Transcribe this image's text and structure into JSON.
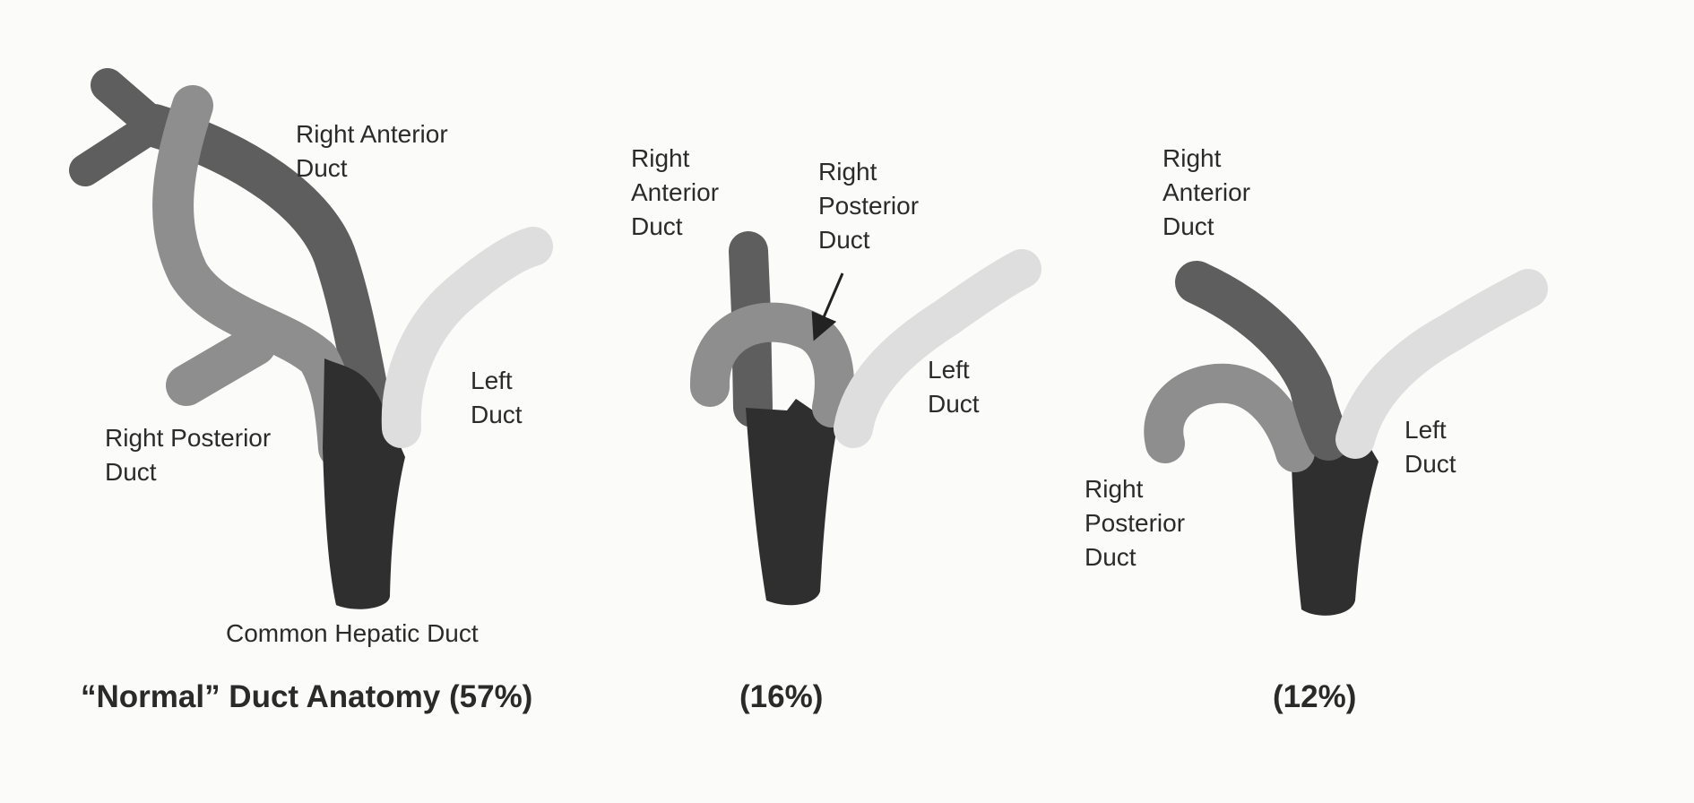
{
  "colors": {
    "background": "#fbfbf9",
    "common_hepatic_duct": "#2f2f2f",
    "right_anterior_duct": "#5e5e5e",
    "right_posterior_duct": "#8e8e8e",
    "left_duct": "#dedede"
  },
  "panels": [
    {
      "caption": "“Normal” Duct Anatomy (57%)",
      "labels": {
        "right_anterior": [
          "Right Anterior",
          "Duct"
        ],
        "right_posterior": [
          "Right Posterior",
          "Duct"
        ],
        "left": [
          "Left",
          "Duct"
        ],
        "common_hepatic": "Common Hepatic Duct"
      }
    },
    {
      "caption": "(16%)",
      "labels": {
        "right_anterior": [
          "Right",
          "Anterior",
          "Duct"
        ],
        "right_posterior": [
          "Right",
          "Posterior",
          "Duct"
        ],
        "left": [
          "Left",
          "Duct"
        ]
      }
    },
    {
      "caption": "(12%)",
      "labels": {
        "right_anterior": [
          "Right",
          "Anterior",
          "Duct"
        ],
        "right_posterior": [
          "Right",
          "Posterior",
          "Duct"
        ],
        "left": [
          "Left",
          "Duct"
        ]
      }
    }
  ]
}
